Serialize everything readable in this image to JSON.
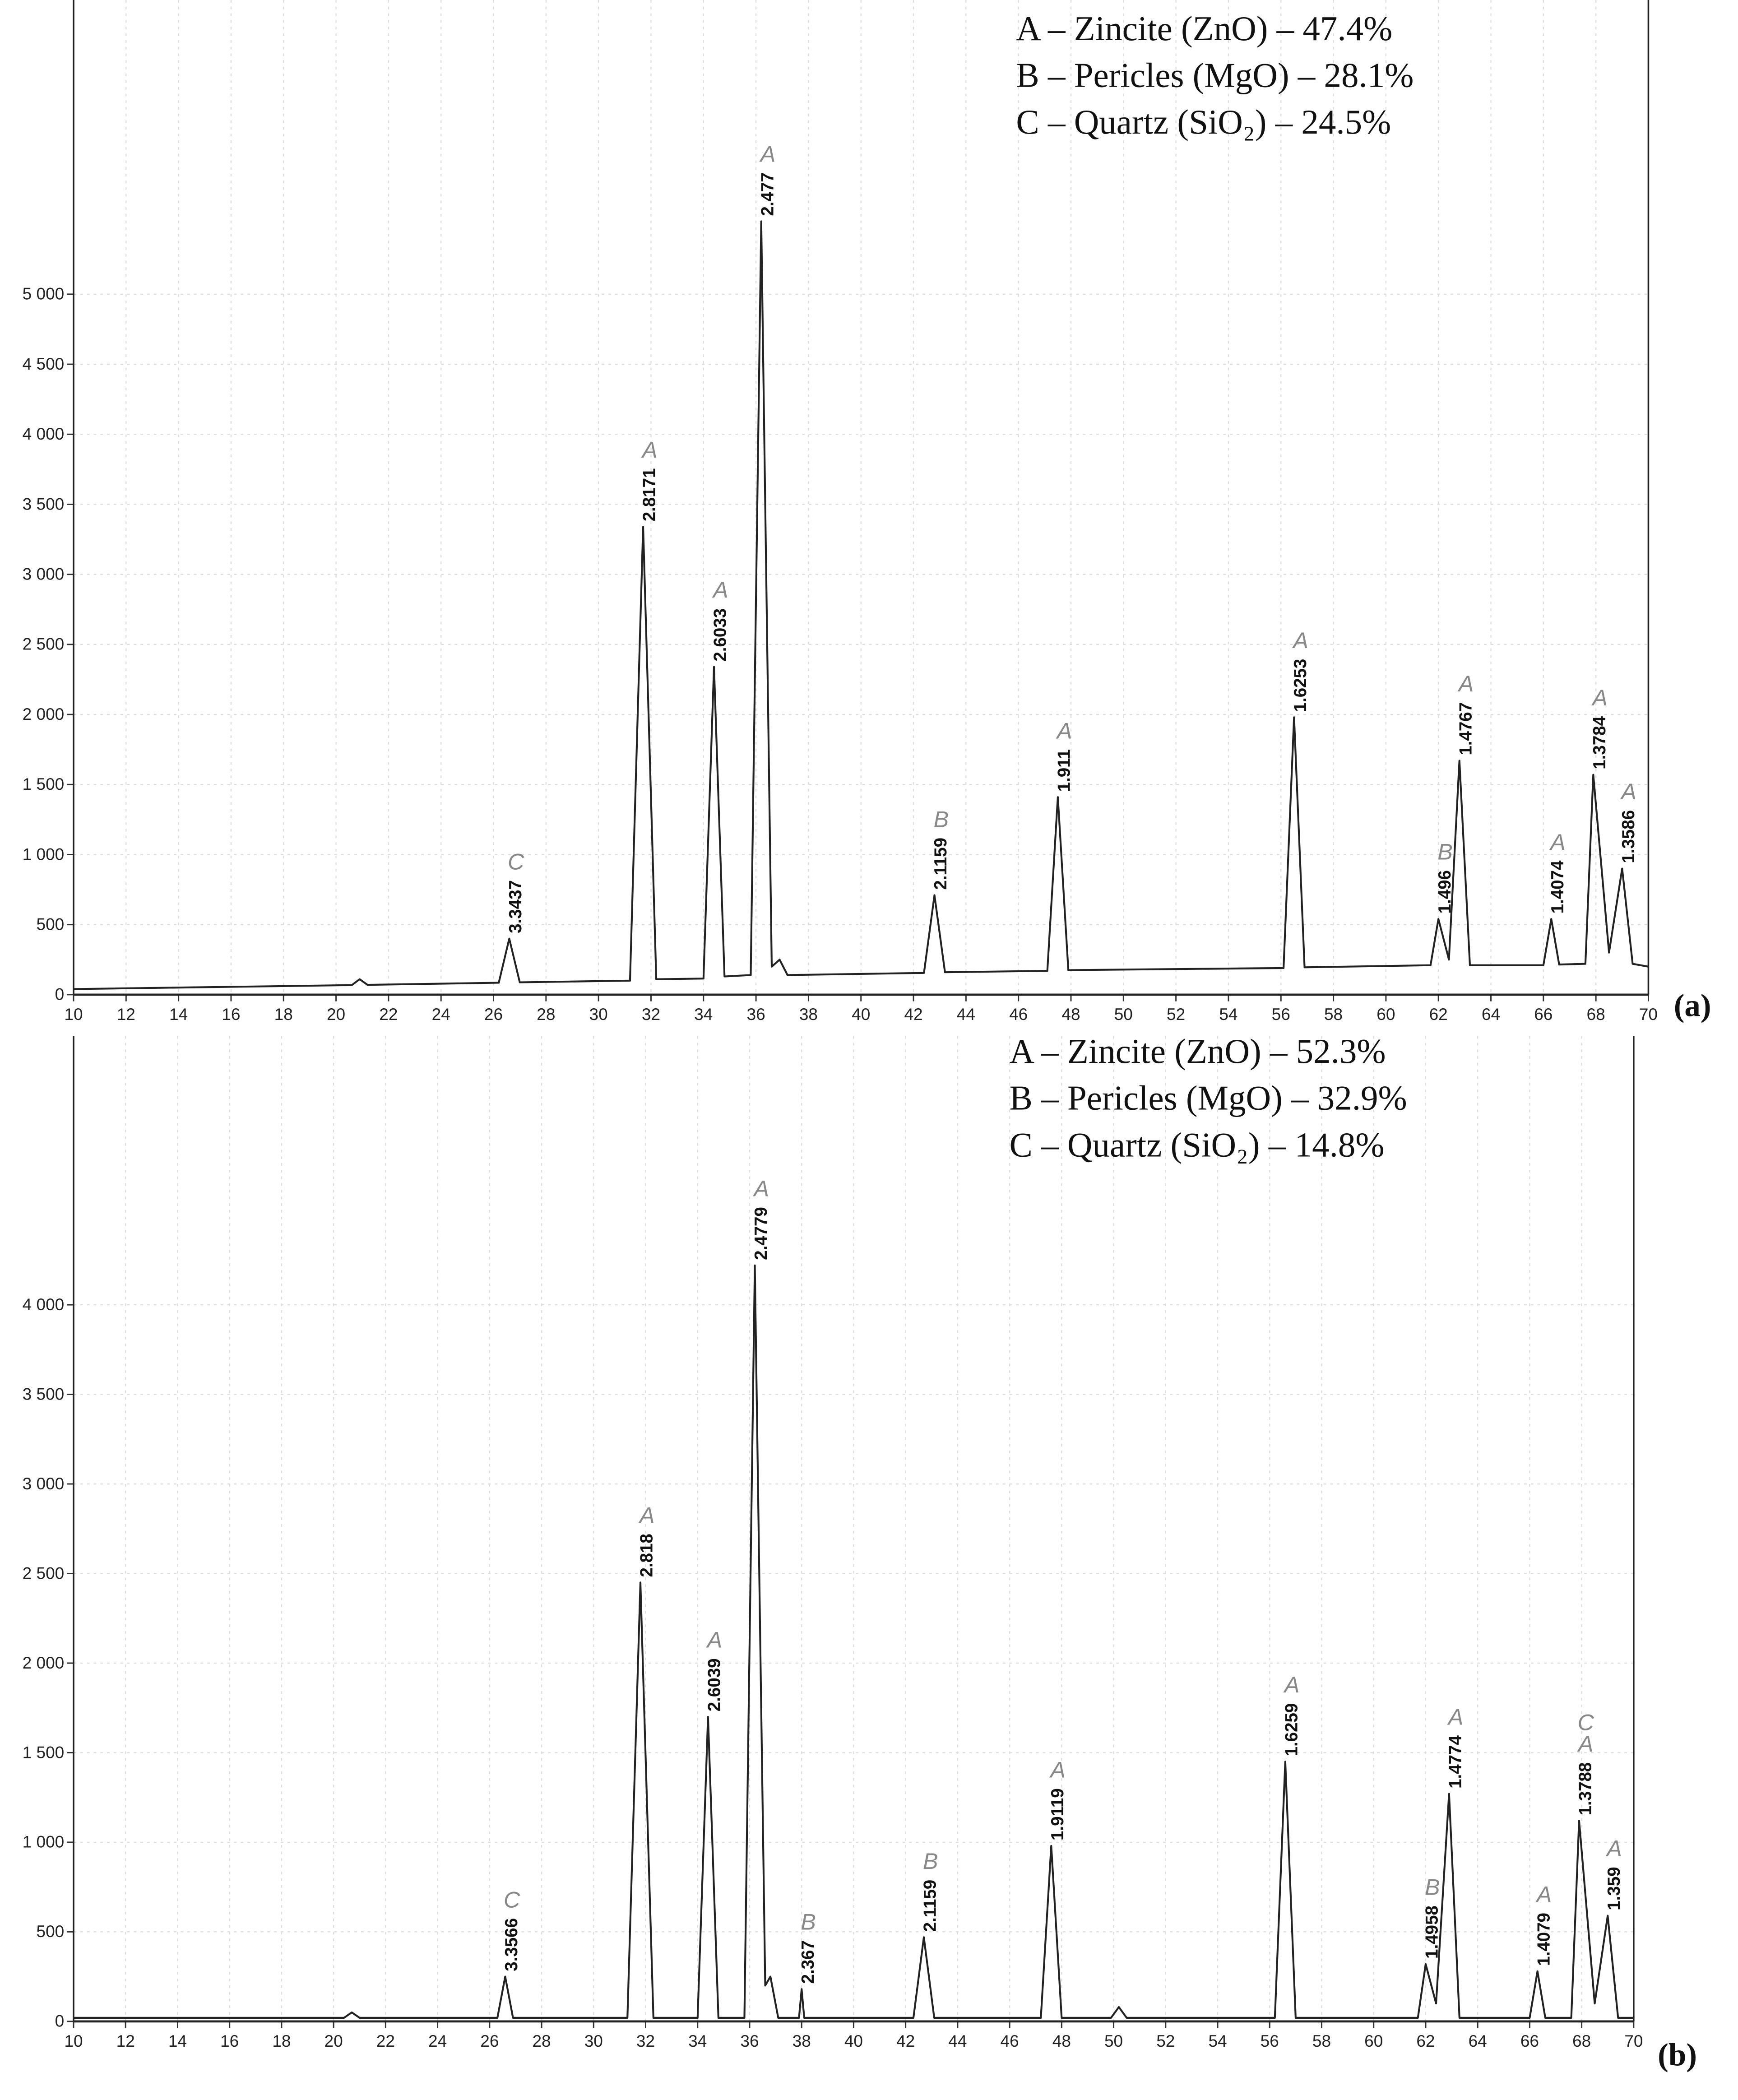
{
  "chart_data": [
    {
      "type": "line",
      "panel_label": "(a)",
      "annotations": [
        "A – Zincite (ZnO) – 47.4%",
        "B – Pericles (MgO) – 28.1%",
        "C – Quartz (SiO₂) – 24.5%"
      ],
      "xlim": [
        10,
        70
      ],
      "xticks": [
        10,
        12,
        14,
        16,
        18,
        20,
        22,
        24,
        26,
        28,
        30,
        32,
        34,
        36,
        38,
        40,
        42,
        44,
        46,
        48,
        50,
        52,
        54,
        56,
        58,
        60,
        62,
        64,
        66,
        68,
        70
      ],
      "ylim": [
        0,
        7100
      ],
      "yticks": [
        0,
        500,
        {
          "value": 1000,
          "label": "1 000"
        },
        {
          "value": 1500,
          "label": "1 500"
        },
        {
          "value": 2000,
          "label": "2 000"
        },
        {
          "value": 2500,
          "label": "2 500"
        },
        {
          "value": 3000,
          "label": "3 000"
        },
        {
          "value": 3500,
          "label": "3 500"
        },
        {
          "value": 4000,
          "label": "4 000"
        },
        {
          "value": 4500,
          "label": "4 500"
        },
        {
          "value": 5000,
          "label": "5 000"
        }
      ],
      "grid": true,
      "color": "#222",
      "x": [
        10,
        20.6,
        20.9,
        21.2,
        26.2,
        26.6,
        27.0,
        31.2,
        31.7,
        32.2,
        34.0,
        34.4,
        34.8,
        35.8,
        36.2,
        36.6,
        36.9,
        37.2,
        42.4,
        42.8,
        43.2,
        47.1,
        47.5,
        47.9,
        56.1,
        56.5,
        56.9,
        61.7,
        62.0,
        62.4,
        62.8,
        63.2,
        66.0,
        66.3,
        66.6,
        67.6,
        67.9,
        68.5,
        69.0,
        69.4,
        70
      ],
      "values": [
        40,
        68,
        110,
        70,
        85,
        400,
        88,
        100,
        3340,
        110,
        115,
        2340,
        130,
        140,
        5520,
        200,
        250,
        140,
        155,
        710,
        160,
        170,
        1410,
        175,
        190,
        1980,
        195,
        210,
        540,
        250,
        1670,
        210,
        210,
        540,
        215,
        220,
        1570,
        300,
        900,
        220,
        200
      ],
      "peaks": [
        {
          "x": 26.6,
          "y": 400,
          "label": "3.3437",
          "phases": [
            "C"
          ]
        },
        {
          "x": 31.7,
          "y": 3340,
          "label": "2.8171",
          "phases": [
            "A"
          ]
        },
        {
          "x": 34.4,
          "y": 2340,
          "label": "2.6033",
          "phases": [
            "A"
          ]
        },
        {
          "x": 36.2,
          "y": 5520,
          "label": "2.477",
          "phases": [
            "A"
          ]
        },
        {
          "x": 42.8,
          "y": 710,
          "label": "2.1159",
          "phases": [
            "B"
          ]
        },
        {
          "x": 47.5,
          "y": 1410,
          "label": "1.911",
          "phases": [
            "A"
          ]
        },
        {
          "x": 56.5,
          "y": 1980,
          "label": "1.6253",
          "phases": [
            "A"
          ]
        },
        {
          "x": 62.0,
          "y": 540,
          "label": "1.496",
          "phases": [
            "B"
          ]
        },
        {
          "x": 62.8,
          "y": 1670,
          "label": "1.4767",
          "phases": [
            "A"
          ]
        },
        {
          "x": 66.3,
          "y": 540,
          "label": "1.4074",
          "phases": [
            "A"
          ]
        },
        {
          "x": 67.9,
          "y": 1570,
          "label": "1.3784",
          "phases": [
            "A"
          ]
        },
        {
          "x": 69.0,
          "y": 900,
          "label": "1.3586",
          "phases": [
            "A"
          ]
        }
      ]
    },
    {
      "type": "line",
      "panel_label": "(b)",
      "annotations": [
        "A – Zincite (ZnO) – 52.3%",
        "B – Pericles (MgO) – 32.9%",
        "C – Quartz (SiO₂) – 14.8%"
      ],
      "xlim": [
        10,
        70
      ],
      "xticks": [
        10,
        12,
        14,
        16,
        18,
        20,
        22,
        24,
        26,
        28,
        30,
        32,
        34,
        36,
        38,
        40,
        42,
        44,
        46,
        48,
        50,
        52,
        54,
        56,
        58,
        60,
        62,
        64,
        66,
        68,
        70
      ],
      "ylim": [
        0,
        5500
      ],
      "yticks": [
        0,
        500,
        {
          "value": 1000,
          "label": "1 000"
        },
        {
          "value": 1500,
          "label": "1 500"
        },
        {
          "value": 2000,
          "label": "2 000"
        },
        {
          "value": 2500,
          "label": "2 500"
        },
        {
          "value": 3000,
          "label": "3 000"
        },
        {
          "value": 3500,
          "label": "3 500"
        },
        {
          "value": 4000,
          "label": "4 000"
        }
      ],
      "grid": true,
      "color": "#222",
      "x": [
        10,
        20.4,
        20.7,
        21.0,
        26.3,
        26.6,
        26.9,
        31.3,
        31.8,
        32.3,
        34.0,
        34.4,
        34.8,
        35.8,
        36.2,
        36.6,
        36.8,
        37.1,
        37.9,
        38.0,
        38.1,
        42.3,
        42.7,
        43.1,
        47.2,
        47.6,
        48.0,
        49.9,
        50.2,
        50.5,
        56.2,
        56.6,
        57.0,
        61.7,
        62.0,
        62.4,
        62.9,
        63.3,
        66.0,
        66.3,
        66.6,
        67.6,
        67.9,
        68.5,
        69.0,
        69.4,
        70
      ],
      "values": [
        20,
        20,
        50,
        20,
        20,
        250,
        20,
        20,
        2450,
        20,
        20,
        1700,
        20,
        20,
        4220,
        200,
        250,
        20,
        20,
        180,
        20,
        20,
        470,
        20,
        20,
        980,
        20,
        20,
        80,
        20,
        20,
        1450,
        20,
        20,
        320,
        100,
        1270,
        20,
        20,
        280,
        20,
        20,
        1120,
        100,
        590,
        20,
        20
      ],
      "peaks": [
        {
          "x": 26.6,
          "y": 250,
          "label": "3.3566",
          "phases": [
            "C"
          ]
        },
        {
          "x": 31.8,
          "y": 2450,
          "label": "2.818",
          "phases": [
            "A"
          ]
        },
        {
          "x": 34.4,
          "y": 1700,
          "label": "2.6039",
          "phases": [
            "A"
          ]
        },
        {
          "x": 36.2,
          "y": 4220,
          "label": "2.4779",
          "phases": [
            "A"
          ]
        },
        {
          "x": 38.0,
          "y": 180,
          "label": "2.367",
          "phases": [
            "B"
          ]
        },
        {
          "x": 42.7,
          "y": 470,
          "label": "2.1159",
          "phases": [
            "B"
          ]
        },
        {
          "x": 47.6,
          "y": 980,
          "label": "1.9119",
          "phases": [
            "A"
          ]
        },
        {
          "x": 56.6,
          "y": 1450,
          "label": "1.6259",
          "phases": [
            "A"
          ]
        },
        {
          "x": 62.0,
          "y": 320,
          "label": "1.4958",
          "phases": [
            "B"
          ]
        },
        {
          "x": 62.9,
          "y": 1270,
          "label": "1.4774",
          "phases": [
            "A"
          ]
        },
        {
          "x": 66.3,
          "y": 280,
          "label": "1.4079",
          "phases": [
            "A"
          ]
        },
        {
          "x": 67.9,
          "y": 1120,
          "label": "1.3788",
          "phases": [
            "C",
            "A"
          ]
        },
        {
          "x": 69.0,
          "y": 590,
          "label": "1.359",
          "phases": [
            "A"
          ]
        }
      ]
    }
  ]
}
